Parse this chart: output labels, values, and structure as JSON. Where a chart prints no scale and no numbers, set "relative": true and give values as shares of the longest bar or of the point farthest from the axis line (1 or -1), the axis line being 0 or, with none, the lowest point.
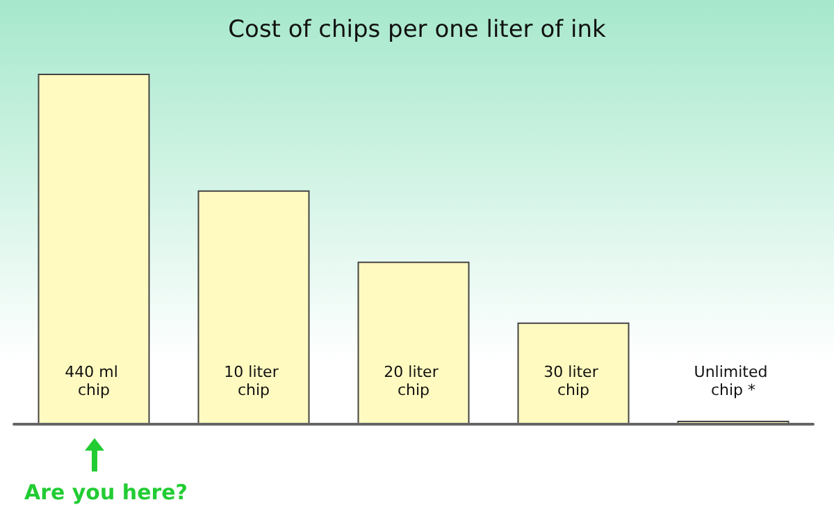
{
  "chart_data": {
    "type": "bar",
    "title": "Cost of chips per one liter of ink",
    "categories": [
      "440 ml chip",
      "10 liter chip",
      "20 liter chip",
      "30 liter chip",
      "Unlimited chip *"
    ],
    "values": [
      1,
      0.667,
      0.464,
      0.29,
      0.01
    ],
    "color": "#fffac0",
    "relative": true,
    "grid": false,
    "annotations": [
      "Are you here?"
    ]
  }
}
